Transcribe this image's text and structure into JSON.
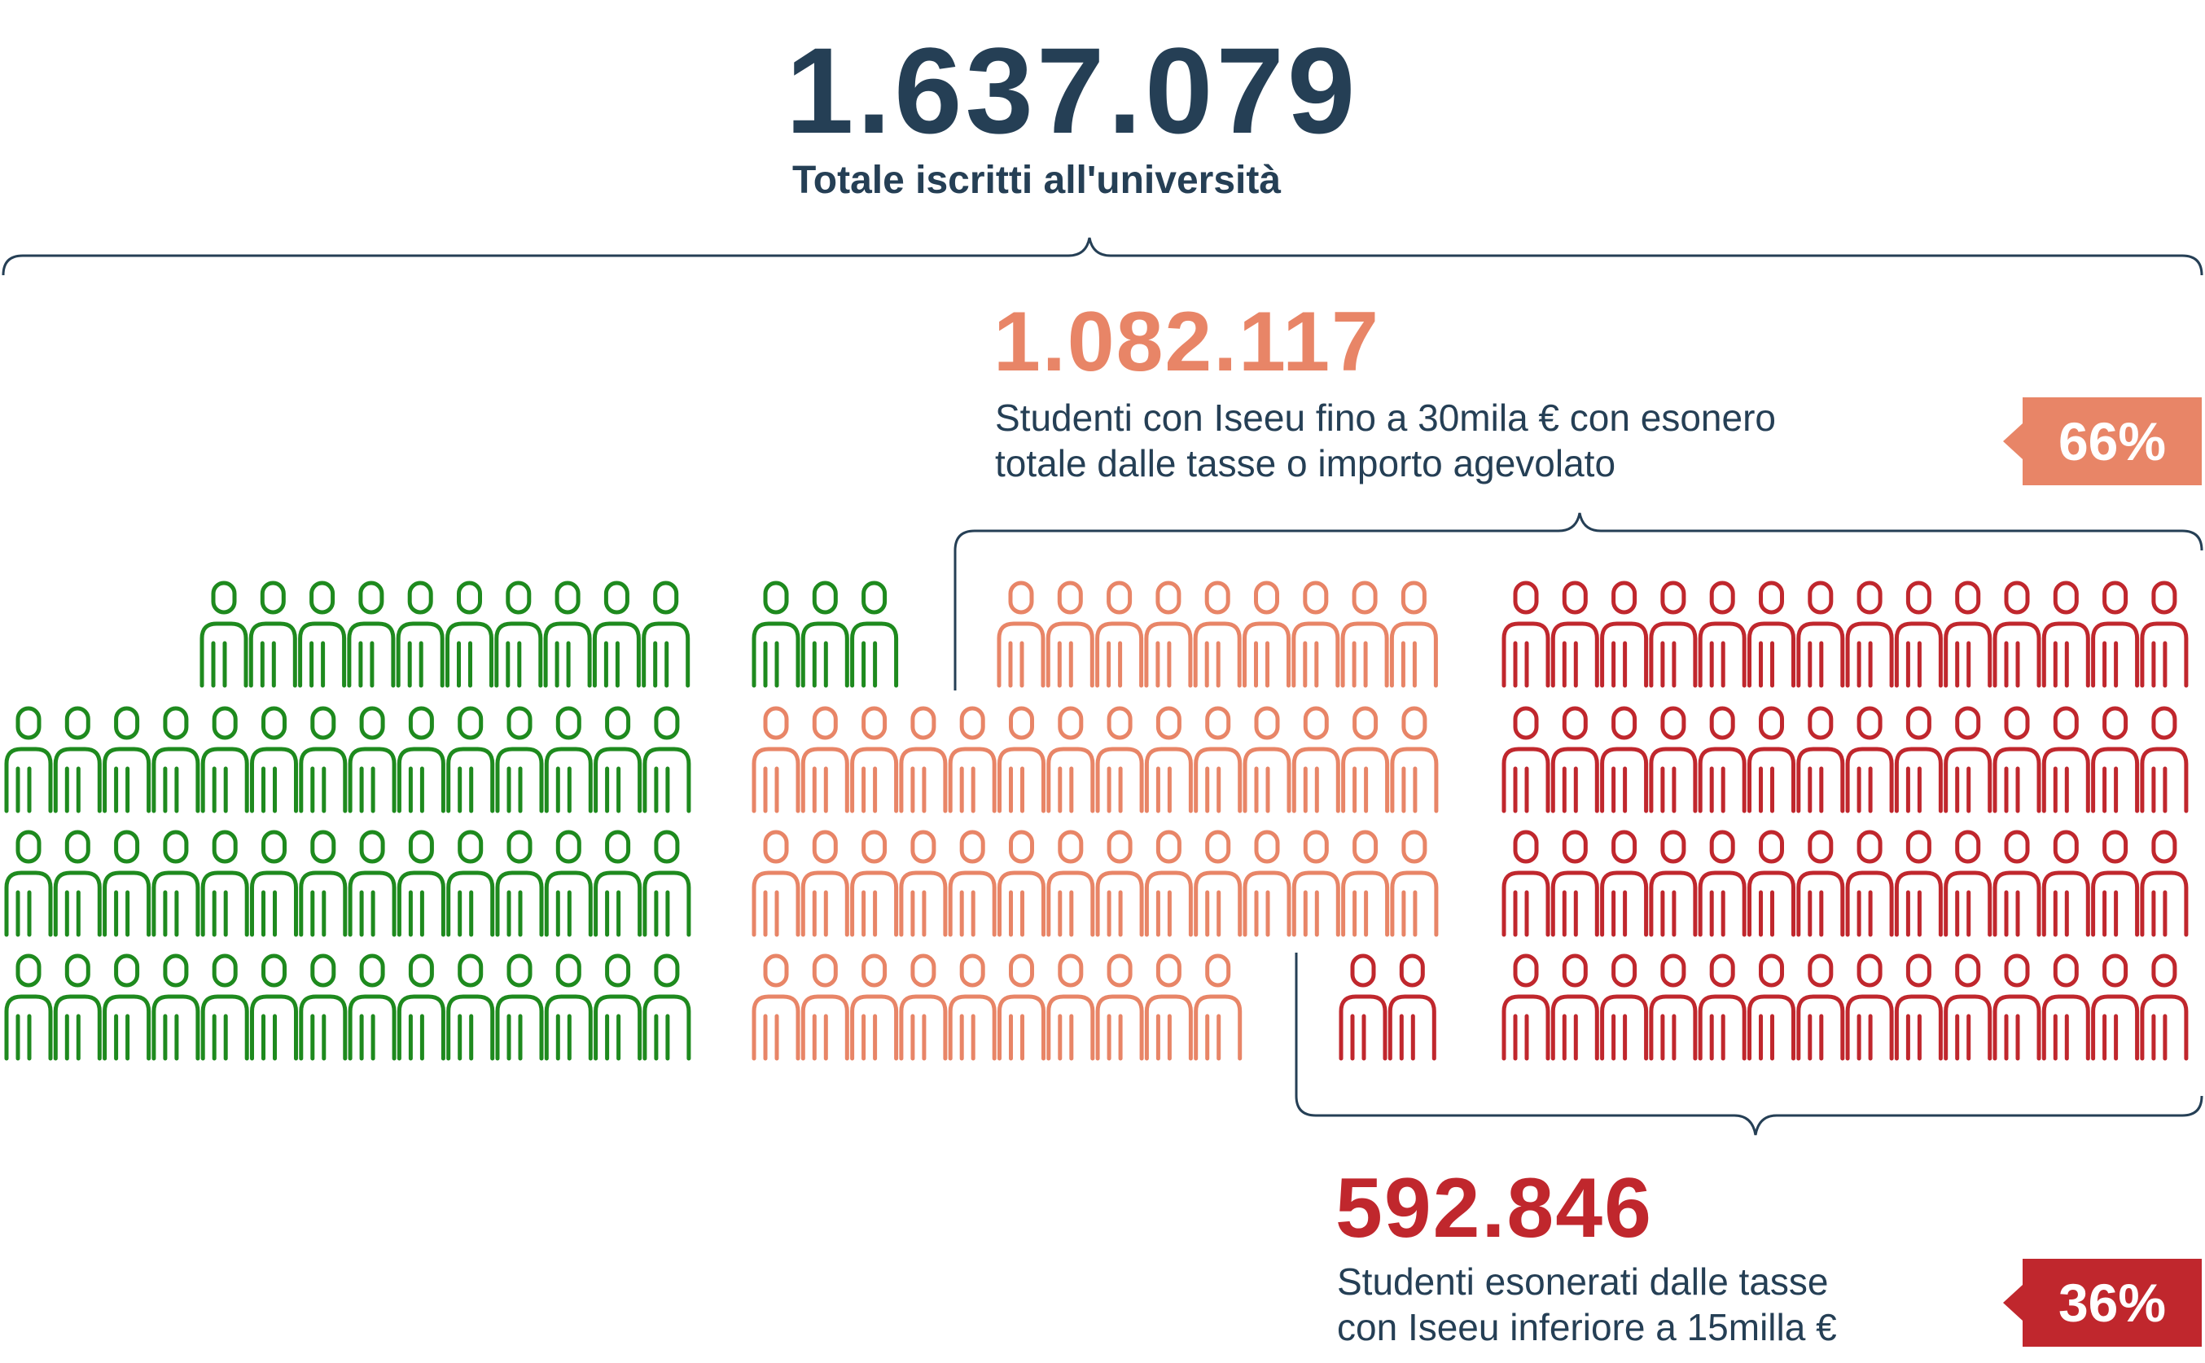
{
  "total": {
    "value": "1.637.079",
    "label": "Totale iscritti all'università"
  },
  "mid": {
    "value": "1.082.117",
    "label_line1": "Studenti con Iseeu fino a 30mila € con esonero",
    "label_line2": "totale dalle tasse o importo agevolato",
    "percent": "66%"
  },
  "low": {
    "value": "592.846",
    "label_line1": "Studenti esonerati dalle tasse",
    "label_line2": "con Iseeu inferiore a 15milla €",
    "percent": "36%"
  },
  "colors": {
    "dark": "#253f55",
    "green": "#1e8a1e",
    "salmon": "#e88567",
    "red": "#c0272d"
  },
  "icon": "person-icon"
}
